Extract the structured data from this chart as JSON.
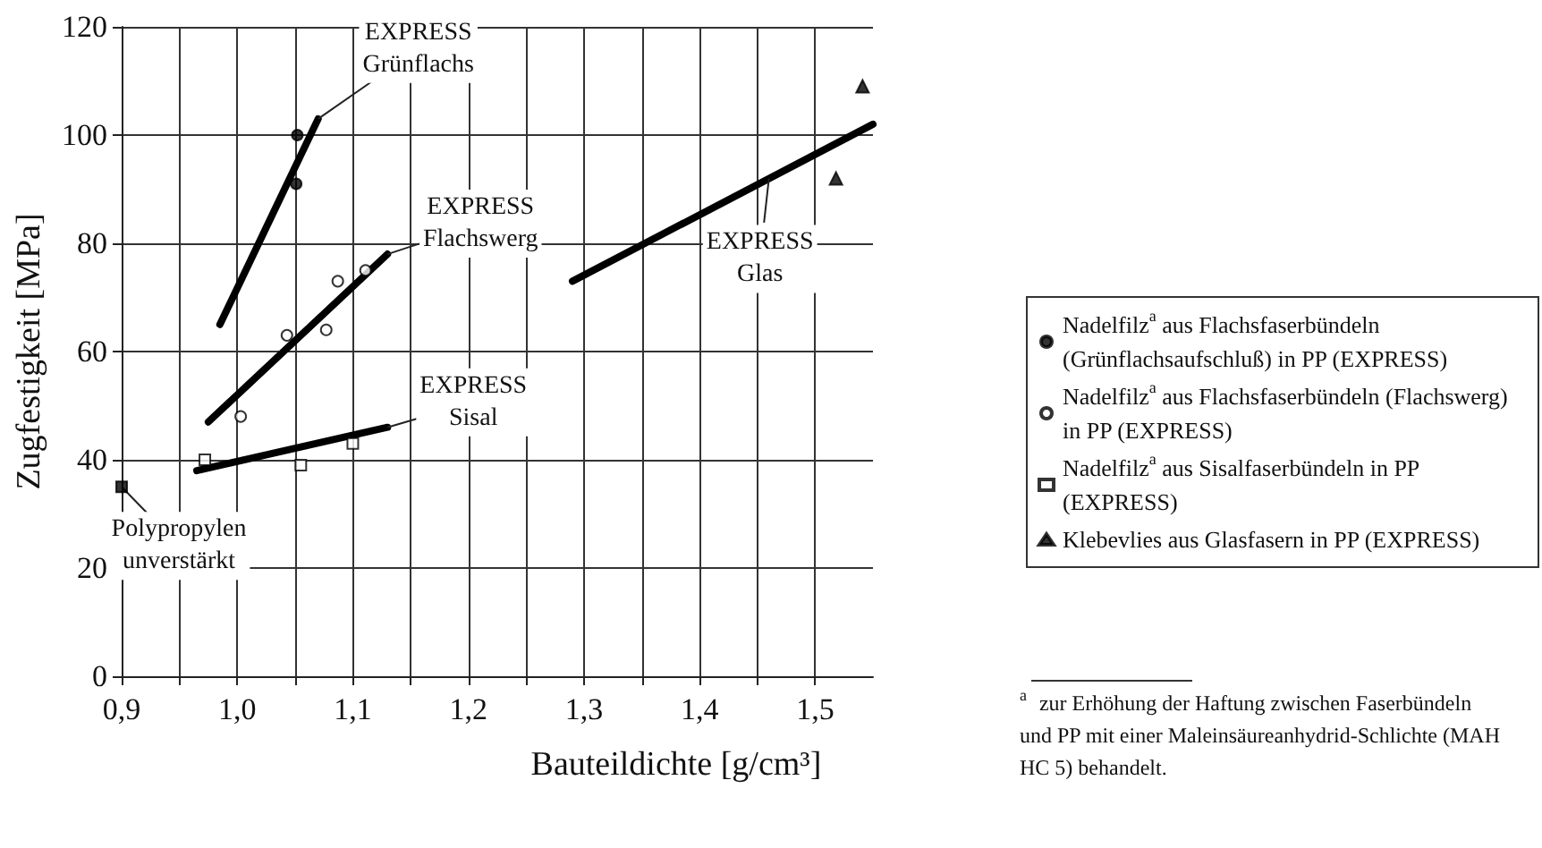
{
  "chart_data": {
    "type": "scatter",
    "xlabel": "Bauteildichte [g/cm³]",
    "ylabel": "Zugfestigkeit [MPa]",
    "xlim": [
      0.9,
      1.55
    ],
    "xticks": [
      {
        "value": 0.9,
        "label": "0,9"
      },
      {
        "value": 0.95,
        "label": null
      },
      {
        "value": 1.0,
        "label": "1,0"
      },
      {
        "value": 1.05,
        "label": null
      },
      {
        "value": 1.1,
        "label": "1,1"
      },
      {
        "value": 1.15,
        "label": null
      },
      {
        "value": 1.2,
        "label": "1,2"
      },
      {
        "value": 1.25,
        "label": null
      },
      {
        "value": 1.3,
        "label": "1,3"
      },
      {
        "value": 1.35,
        "label": null
      },
      {
        "value": 1.4,
        "label": "1,4"
      },
      {
        "value": 1.45,
        "label": null
      },
      {
        "value": 1.5,
        "label": "1,5"
      }
    ],
    "ylim": [
      0,
      120
    ],
    "yticks": [
      0,
      20,
      40,
      60,
      80,
      100,
      120
    ],
    "grid": true,
    "legend": "right",
    "series": [
      {
        "name": "Nadelfilz$^{a}$ aus Flachsfaserbündeln (Grünflachsaufschluß) in PP (EXPRESS)",
        "marker": "circle",
        "color": "#000000",
        "x": [
          1.052,
          1.051
        ],
        "values": [
          100,
          91
        ]
      },
      {
        "name": "Nadelfilz$^{a}$ aus Flachsfaserbündeln (Flachswerg) in PP (EXPRESS)",
        "marker": "circle",
        "color": "#ffffff",
        "x": [
          1.003,
          1.043,
          1.077,
          1.087,
          1.111
        ],
        "values": [
          48,
          63,
          64,
          73,
          75
        ]
      },
      {
        "name": "Nadelfilz$^{a}$ aus Sisalfaserbündeln in PP (EXPRESS)",
        "marker": "square",
        "color": "#ffffff",
        "x": [
          0.972,
          1.055,
          1.1
        ],
        "values": [
          40,
          39,
          43
        ]
      },
      {
        "name": "Klebevlies aus Glasfasern in PP (EXPRESS)",
        "marker": "triangle",
        "color": "#000000",
        "x": [
          1.541,
          1.518
        ],
        "values": [
          109,
          92
        ]
      },
      {
        "marker": "square",
        "color": "#000000",
        "x": [
          0.9
        ],
        "values": [
          35
        ]
      },
      {
        "type": "line",
        "marker": "none",
        "color": "#000000",
        "x": [
          0.985,
          1.07
        ],
        "values": [
          65,
          103
        ]
      },
      {
        "type": "line",
        "marker": "none",
        "color": "#000000",
        "x": [
          0.975,
          1.13
        ],
        "values": [
          47,
          78
        ]
      },
      {
        "type": "line",
        "marker": "none",
        "color": "#000000",
        "x": [
          0.965,
          1.13
        ],
        "values": [
          38,
          46
        ]
      },
      {
        "type": "line",
        "marker": "none",
        "color": "#000000",
        "x": [
          1.29,
          1.55
        ],
        "values": [
          73,
          102
        ]
      }
    ],
    "annotations": [
      {
        "text": "EXPRESS\nGrünflachs",
        "x": 1.07,
        "y": 103
      },
      {
        "text": "EXPRESS\nFlachswerg",
        "x": 1.13,
        "y": 78
      },
      {
        "text": "EXPRESS\nSisal",
        "x": 1.13,
        "y": 46
      },
      {
        "text": "EXPRESS\nGlas",
        "x": 1.46,
        "y": 92
      },
      {
        "text": "Polypropylen\nunverstärkt",
        "x": 0.9,
        "y": 35
      },
      "$^{a}$ zur Erhöhung der Haftung zwischen Faserbündeln und PP mit einer Maleinsäureanhydrid-Schlichte (MAH HC 5) behandelt."
    ]
  }
}
